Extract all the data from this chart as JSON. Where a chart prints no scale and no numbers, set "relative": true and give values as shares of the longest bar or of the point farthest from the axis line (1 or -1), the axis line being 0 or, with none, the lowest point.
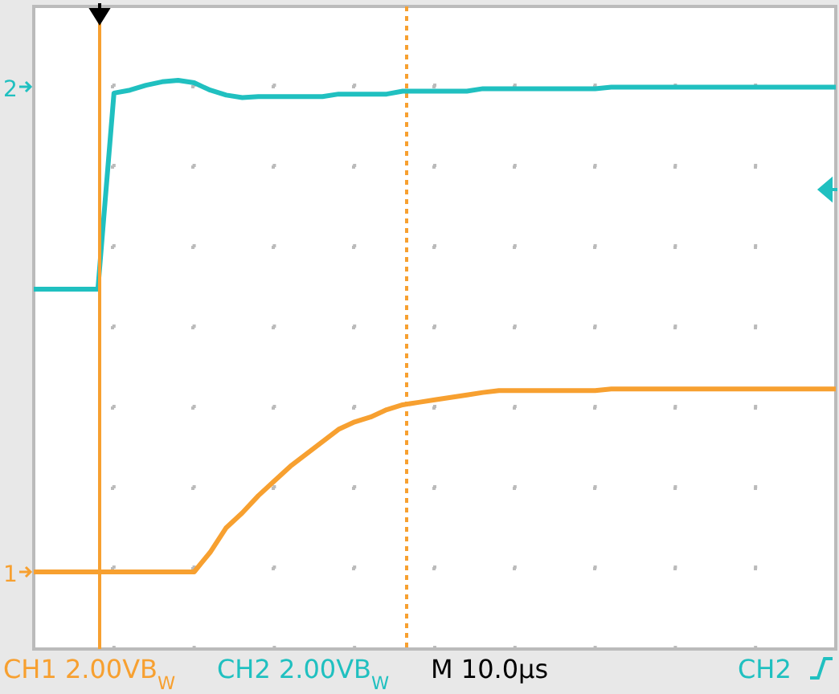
{
  "chart_data": {
    "type": "line",
    "relative": true,
    "grid": true,
    "line_style": "solid",
    "marker": "none",
    "categories": [
      null,
      null,
      null,
      null,
      null,
      null,
      null,
      null,
      null,
      null,
      null,
      null,
      null,
      null,
      null,
      null,
      null,
      null,
      null,
      null,
      null,
      null,
      null,
      null,
      null,
      null,
      null,
      null,
      null,
      null,
      null,
      null,
      null,
      null,
      null,
      null,
      null,
      null,
      null,
      null,
      null,
      null,
      null,
      null,
      null,
      null,
      null,
      null,
      null,
      null,
      null
    ],
    "series": [
      {
        "color": "#20c0c0",
        "values": [
          0.575,
          0.575,
          0.575,
          0.575,
          0.575,
          0.974,
          0.98,
          0.99,
          0.997,
          1,
          0.995,
          0.98,
          0.97,
          0.965,
          0.967,
          0.967,
          0.967,
          0.967,
          0.967,
          0.972,
          0.972,
          0.972,
          0.972,
          0.978,
          0.978,
          0.978,
          0.978,
          0.978,
          0.983,
          0.983,
          0.983,
          0.983,
          0.983,
          0.983,
          0.983,
          0.983,
          0.986,
          0.986,
          0.986,
          0.986,
          0.986,
          0.986,
          0.986,
          0.986,
          0.986,
          0.986,
          0.986,
          0.986,
          0.986,
          0.986,
          0.986
        ]
      },
      {
        "color": "#f7a030",
        "values": [
          0,
          0,
          0,
          0,
          0,
          0,
          0,
          0,
          0,
          0,
          0,
          0.04,
          0.09,
          0.12,
          0.155,
          0.185,
          0.215,
          0.24,
          0.265,
          0.29,
          0.305,
          0.315,
          0.33,
          0.34,
          0.345,
          0.35,
          0.355,
          0.36,
          0.365,
          0.369,
          0.369,
          0.369,
          0.369,
          0.369,
          0.369,
          0.369,
          0.372,
          0.372,
          0.372,
          0.372,
          0.372,
          0.372,
          0.372,
          0.372,
          0.372,
          0.372,
          0.372,
          0.372,
          0.372,
          0.372,
          0.372
        ]
      }
    ],
    "annotations": [
      "1",
      "2",
      "CH1 2.00VB$_{W}$",
      "CH2 2.00VB$_{W}$",
      "M 10.0µs",
      "CH2"
    ]
  }
}
